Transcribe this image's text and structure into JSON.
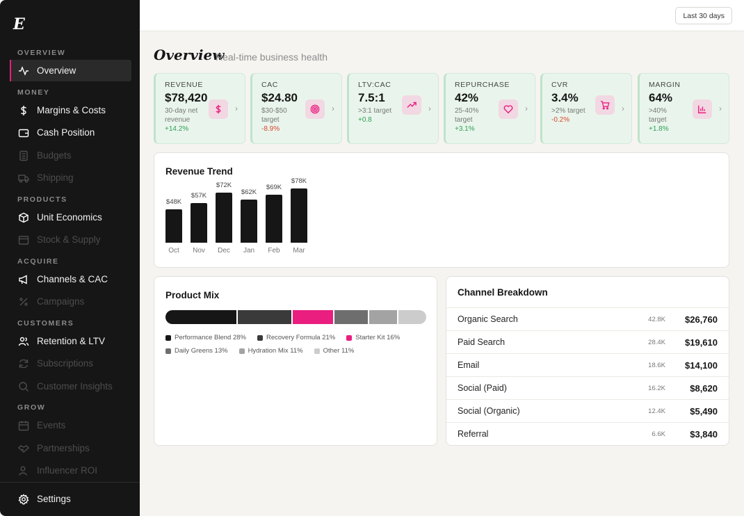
{
  "app": {
    "logo": "E"
  },
  "sidebar": {
    "sections": [
      {
        "label": "OVERVIEW",
        "items": [
          {
            "label": "Overview",
            "icon": "activity-icon",
            "active": true
          }
        ]
      },
      {
        "label": "MONEY",
        "items": [
          {
            "label": "Margins & Costs",
            "icon": "dollar-icon"
          },
          {
            "label": "Cash Position",
            "icon": "wallet-icon"
          },
          {
            "label": "Budgets",
            "icon": "calculator-icon",
            "disabled": true
          },
          {
            "label": "Shipping",
            "icon": "truck-icon",
            "disabled": true
          }
        ]
      },
      {
        "label": "PRODUCTS",
        "items": [
          {
            "label": "Unit Economics",
            "icon": "box-icon"
          },
          {
            "label": "Stock & Supply",
            "icon": "package-icon",
            "disabled": true
          }
        ]
      },
      {
        "label": "ACQUIRE",
        "items": [
          {
            "label": "Channels & CAC",
            "icon": "megaphone-icon"
          },
          {
            "label": "Campaigns",
            "icon": "percent-icon",
            "disabled": true
          }
        ]
      },
      {
        "label": "CUSTOMERS",
        "items": [
          {
            "label": "Retention & LTV",
            "icon": "users-icon"
          },
          {
            "label": "Subscriptions",
            "icon": "refresh-icon",
            "disabled": true
          },
          {
            "label": "Customer Insights",
            "icon": "search-icon",
            "disabled": true
          }
        ]
      },
      {
        "label": "GROW",
        "items": [
          {
            "label": "Events",
            "icon": "calendar-icon",
            "disabled": true
          },
          {
            "label": "Partnerships",
            "icon": "handshake-icon",
            "disabled": true
          },
          {
            "label": "Influencer ROI",
            "icon": "user-icon",
            "disabled": true
          }
        ]
      }
    ],
    "settings_label": "Settings"
  },
  "header": {
    "range_label": "Last 30 days"
  },
  "page": {
    "title": "Overview",
    "subtitle": "Real-time business health"
  },
  "kpis": [
    {
      "label": "REVENUE",
      "value": "$78,420",
      "target": "30-day net revenue",
      "change": "+14.2%",
      "positive": true,
      "icon": "dollar-icon"
    },
    {
      "label": "CAC",
      "value": "$24.80",
      "target": "$30-$50 target",
      "change": "-8.9%",
      "positive": true,
      "icon": "target-icon"
    },
    {
      "label": "LTV:CAC",
      "value": "7.5:1",
      "target": ">3:1 target",
      "change": "+0.8",
      "positive": true,
      "icon": "trending-up-icon"
    },
    {
      "label": "REPURCHASE",
      "value": "42%",
      "target": "25-40% target",
      "change": "+3.1%",
      "positive": true,
      "icon": "heart-icon"
    },
    {
      "label": "CVR",
      "value": "3.4%",
      "target": ">2% target",
      "change": "-0.2%",
      "positive": false,
      "icon": "cart-icon"
    },
    {
      "label": "MARGIN",
      "value": "64%",
      "target": ">40% target",
      "change": "+1.8%",
      "positive": true,
      "icon": "bar-chart-icon"
    }
  ],
  "revenue_trend": {
    "title": "Revenue Trend"
  },
  "chart_data": {
    "type": "bar",
    "title": "Revenue Trend",
    "categories": [
      "Oct",
      "Nov",
      "Dec",
      "Jan",
      "Feb",
      "Mar"
    ],
    "values": [
      48,
      57,
      72,
      62,
      69,
      78
    ],
    "value_labels": [
      "$48K",
      "$57K",
      "$72K",
      "$62K",
      "$69K",
      "$78K"
    ],
    "ylim": [
      0,
      80
    ]
  },
  "product_mix": {
    "title": "Product Mix",
    "items": [
      {
        "name": "Performance Blend",
        "pct": 28,
        "label": "Performance Blend 28%",
        "color": "#161616"
      },
      {
        "name": "Recovery Formula",
        "pct": 21,
        "label": "Recovery Formula 21%",
        "color": "#3a3a3a"
      },
      {
        "name": "Starter Kit",
        "pct": 16,
        "label": "Starter Kit 16%",
        "color": "#e91e7f"
      },
      {
        "name": "Daily Greens",
        "pct": 13,
        "label": "Daily Greens 13%",
        "color": "#6e6e6e"
      },
      {
        "name": "Hydration Mix",
        "pct": 11,
        "label": "Hydration Mix 11%",
        "color": "#a3a3a3"
      },
      {
        "name": "Other",
        "pct": 11,
        "label": "Other 11%",
        "color": "#cccccc"
      }
    ]
  },
  "channel_breakdown": {
    "title": "Channel Breakdown",
    "rows": [
      {
        "name": "Organic Search",
        "volume": "42.8K",
        "revenue": "$26,760"
      },
      {
        "name": "Paid Search",
        "volume": "28.4K",
        "revenue": "$19,610"
      },
      {
        "name": "Email",
        "volume": "18.6K",
        "revenue": "$14,100"
      },
      {
        "name": "Social (Paid)",
        "volume": "16.2K",
        "revenue": "$8,620"
      },
      {
        "name": "Social (Organic)",
        "volume": "12.4K",
        "revenue": "$5,490"
      },
      {
        "name": "Referral",
        "volume": "6.6K",
        "revenue": "$3,840"
      }
    ]
  }
}
